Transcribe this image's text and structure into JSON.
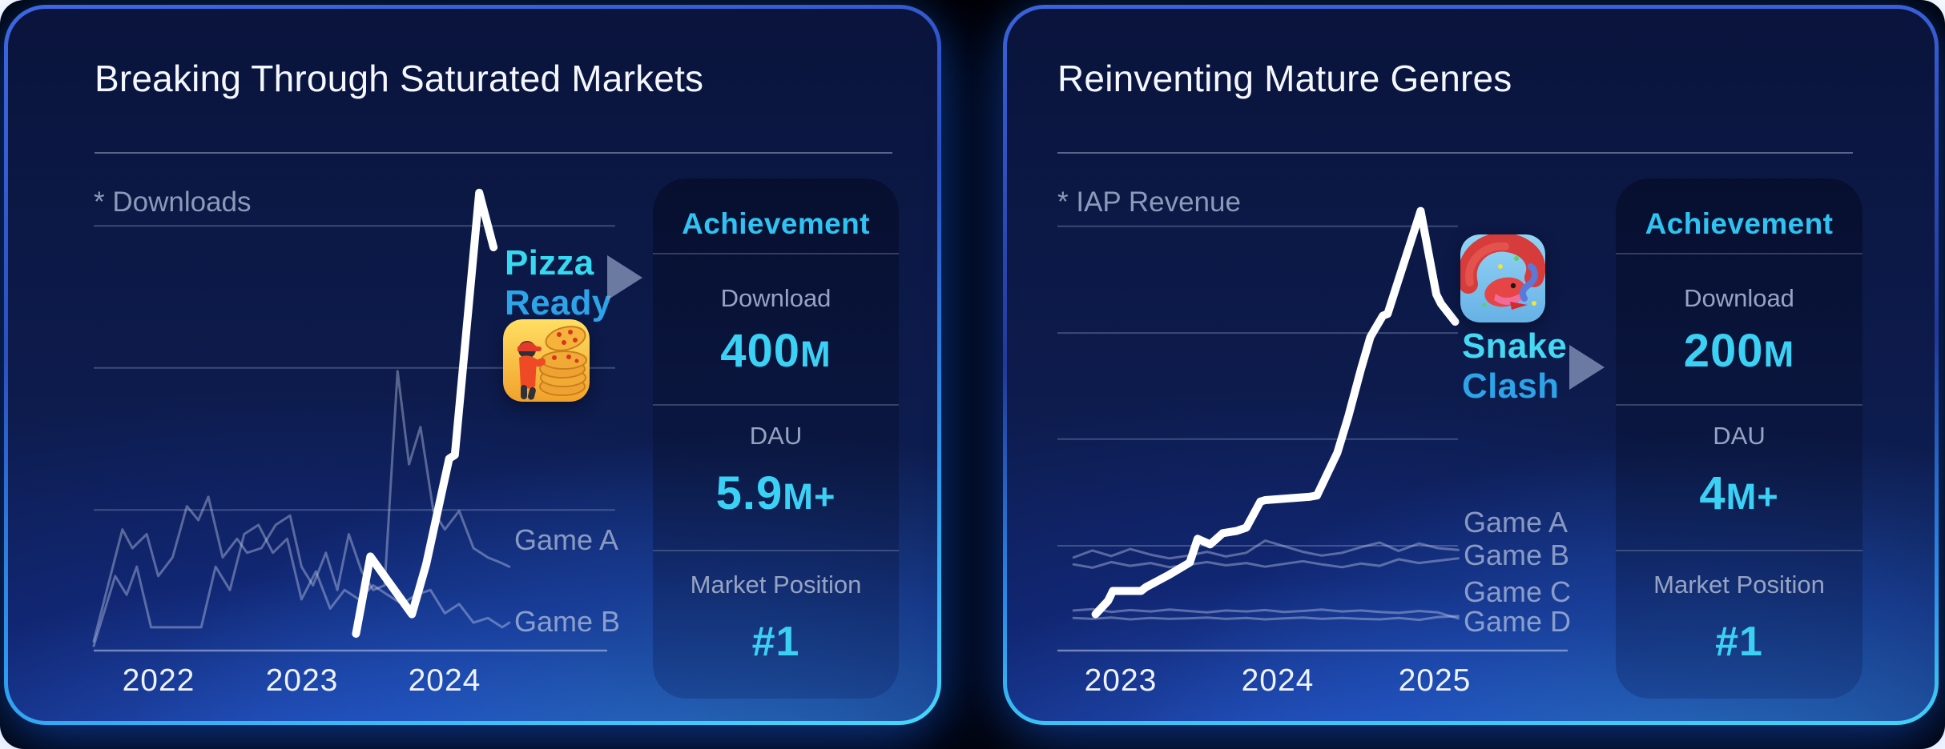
{
  "colors": {
    "accent_cyan": "#3bd1f5",
    "header_cyan": "#2fc3f2",
    "app_name_line1_cyan": "#36d9f0",
    "app_name_line2_blue": "#2da3e8",
    "muted_label_gray": "#97a3c2",
    "series_label_gray": "rgba(178,192,220,0.74)",
    "hero_line_white": "#ffffff",
    "competitor_line": "rgba(199,211,238,0.40)",
    "card_border_blue": "#2f9df0",
    "card_border_cyan": "#45d9fa"
  },
  "cards": [
    {
      "title": "Breaking Through Saturated Markets",
      "metric_note": "* Downloads",
      "x_ticks": [
        "2022",
        "2023",
        "2024"
      ],
      "line_labels": [
        "Game A",
        "Game B"
      ],
      "app": {
        "name_line1": "Pizza",
        "name_line2": "Ready",
        "icon": "pizza-ready-app-icon",
        "arrow_icon": "triangle-right-icon"
      },
      "achievement": {
        "header": "Achievement",
        "stats": [
          {
            "label": "Download",
            "value_main": "400",
            "value_suffix": "M"
          },
          {
            "label": "DAU",
            "value_main": "5.9",
            "value_suffix": "M+"
          },
          {
            "label": "Market Position",
            "value_main": "#1",
            "value_suffix": ""
          }
        ]
      }
    },
    {
      "title": "Reinventing Mature Genres",
      "metric_note": "* IAP Revenue",
      "x_ticks": [
        "2023",
        "2024",
        "2025"
      ],
      "line_labels": [
        "Game A",
        "Game B",
        "Game C",
        "Game D"
      ],
      "app": {
        "name_line1": "Snake",
        "name_line2": "Clash",
        "icon": "snake-clash-app-icon",
        "arrow_icon": "triangle-right-icon"
      },
      "achievement": {
        "header": "Achievement",
        "stats": [
          {
            "label": "Download",
            "value_main": "200",
            "value_suffix": "M"
          },
          {
            "label": "DAU",
            "value_main": "4",
            "value_suffix": "M+"
          },
          {
            "label": "Market Position",
            "value_main": "#1",
            "value_suffix": ""
          }
        ]
      }
    }
  ],
  "chart_data": [
    {
      "type": "line",
      "title": "Breaking Through Saturated Markets",
      "metric": "Downloads",
      "xlabel": "",
      "ylabel": "",
      "x_ticks": [
        2022,
        2023,
        2024
      ],
      "xlim": [
        2021.55,
        2025.3
      ],
      "ylim": [
        0,
        100
      ],
      "y_units": "relative downloads (no numeric scale shown)",
      "grid": "horizontal",
      "gridline_values": [
        30.2,
        60.7,
        91.2
      ],
      "legend_position": "inline-right",
      "series": [
        {
          "name": "Game A",
          "color": "rgba(199,211,238,0.40)",
          "width": 3,
          "x": [
            2021.55,
            2021.65,
            2021.75,
            2021.82,
            2021.92,
            2022.0,
            2022.1,
            2022.2,
            2022.28,
            2022.35,
            2022.45,
            2022.55,
            2022.62,
            2022.72,
            2022.82,
            2022.92,
            2023.0,
            2023.08,
            2023.17,
            2023.25,
            2023.33,
            2023.42,
            2023.5,
            2023.58,
            2023.67,
            2023.75,
            2023.83,
            2023.92,
            2024.0,
            2024.1,
            2024.2,
            2024.3,
            2024.38,
            2024.45
          ],
          "y": [
            2,
            14,
            26,
            22,
            25,
            16,
            20,
            31,
            28,
            33,
            20,
            24,
            21,
            22,
            27,
            29,
            18,
            14,
            21,
            13,
            25,
            17,
            13,
            14,
            60,
            40,
            48,
            30,
            26,
            30,
            22,
            20,
            19,
            18
          ]
        },
        {
          "name": "Game B",
          "color": "rgba(199,211,238,0.40)",
          "width": 3,
          "x": [
            2021.55,
            2021.62,
            2021.7,
            2021.78,
            2021.85,
            2021.95,
            2022.3,
            2022.4,
            2022.5,
            2022.6,
            2022.7,
            2022.8,
            2022.9,
            2023.0,
            2023.1,
            2023.2,
            2023.3,
            2023.4,
            2023.5,
            2023.6,
            2023.7,
            2023.8,
            2023.9,
            2024.0,
            2024.1,
            2024.2,
            2024.3,
            2024.4,
            2024.45
          ],
          "y": [
            1,
            8,
            16,
            12,
            18,
            5,
            5,
            18,
            13,
            25,
            27,
            21,
            24,
            11,
            17,
            9,
            13,
            11,
            14,
            12,
            10,
            12,
            13,
            8,
            10,
            6,
            7,
            5,
            6
          ]
        },
        {
          "name": "Pizza Ready",
          "color": "#ffffff",
          "width": 10,
          "x": [
            2023.38,
            2023.48,
            2023.77,
            2023.87,
            2023.97,
            2024.03,
            2024.07,
            2024.24,
            2024.34
          ],
          "y": [
            3.6,
            20.2,
            7.8,
            18.5,
            32.7,
            41.2,
            42.0,
            98.3,
            86.6
          ]
        }
      ]
    },
    {
      "type": "line",
      "title": "Reinventing Mature Genres",
      "metric": "IAP Revenue",
      "xlabel": "",
      "ylabel": "",
      "x_ticks": [
        2023,
        2024,
        2025
      ],
      "xlim": [
        2022.6,
        2025.9
      ],
      "ylim": [
        0,
        100
      ],
      "y_units": "relative IAP revenue (no numeric scale shown)",
      "grid": "horizontal",
      "gridline_values": [
        22.5,
        45.4,
        68.2,
        91.1
      ],
      "legend_position": "inline-right",
      "series": [
        {
          "name": "Game A",
          "color": "rgba(199,211,238,0.40)",
          "width": 3,
          "x": [
            2022.7,
            2022.82,
            2022.94,
            2023.06,
            2023.19,
            2023.31,
            2023.43,
            2023.55,
            2023.67,
            2023.8,
            2023.92,
            2024.04,
            2024.16,
            2024.28,
            2024.41,
            2024.53,
            2024.65,
            2024.77,
            2024.9,
            2025.02,
            2025.15
          ],
          "y": [
            20,
            21.5,
            20.3,
            21.8,
            20.6,
            19.8,
            20.4,
            21.2,
            20.2,
            21,
            23.6,
            22.4,
            21.2,
            20.4,
            21,
            22.2,
            23.2,
            21.4,
            23,
            22,
            21.6
          ]
        },
        {
          "name": "Game B",
          "color": "rgba(199,211,238,0.40)",
          "width": 3,
          "x": [
            2022.7,
            2022.82,
            2022.94,
            2023.06,
            2023.19,
            2023.31,
            2023.43,
            2023.55,
            2023.67,
            2023.8,
            2023.92,
            2024.04,
            2024.16,
            2024.28,
            2024.41,
            2024.53,
            2024.65,
            2024.77,
            2024.9,
            2025.02,
            2025.15
          ],
          "y": [
            18.5,
            17.8,
            19,
            18.2,
            18.8,
            17.9,
            18.4,
            19,
            18.3,
            18.8,
            18,
            18.6,
            19.2,
            18.5,
            17.9,
            18.7,
            18.2,
            19.6,
            18.8,
            19.3,
            19.8
          ]
        },
        {
          "name": "Game C",
          "color": "rgba(199,211,238,0.40)",
          "width": 3,
          "x": [
            2022.7,
            2022.82,
            2022.94,
            2023.06,
            2023.19,
            2023.31,
            2023.43,
            2023.55,
            2023.67,
            2023.8,
            2023.92,
            2024.04,
            2024.16,
            2024.28,
            2024.41,
            2024.53,
            2024.65,
            2024.77,
            2024.9,
            2025.02,
            2025.15
          ],
          "y": [
            8.6,
            8.9,
            8.3,
            8.7,
            8.4,
            8.8,
            8.5,
            8.2,
            8.6,
            8.4,
            8.7,
            8.3,
            8.5,
            8.8,
            8.4,
            8.6,
            8.3,
            8.1,
            8.5,
            8.2,
            6.9
          ]
        },
        {
          "name": "Game D",
          "color": "rgba(199,211,238,0.40)",
          "width": 3,
          "x": [
            2022.7,
            2022.82,
            2022.94,
            2023.06,
            2023.19,
            2023.31,
            2023.43,
            2023.55,
            2023.67,
            2023.8,
            2023.92,
            2024.04,
            2024.16,
            2024.28,
            2024.41,
            2024.53,
            2024.65,
            2024.77,
            2024.9,
            2025.02,
            2025.15
          ],
          "y": [
            7,
            6.8,
            7.1,
            6.7,
            7,
            6.8,
            6.9,
            7.1,
            6.8,
            7,
            6.7,
            6.9,
            7.1,
            6.8,
            7,
            6.8,
            6.7,
            7,
            6.6,
            7.2,
            7.4
          ]
        },
        {
          "name": "Snake Clash",
          "color": "#ffffff",
          "width": 10,
          "x": [
            2022.84,
            2022.92,
            2022.95,
            2023.13,
            2023.16,
            2023.31,
            2023.44,
            2023.49,
            2023.57,
            2023.65,
            2023.74,
            2023.8,
            2023.89,
            2023.92,
            2024.2,
            2024.25,
            2024.38,
            2024.45,
            2024.53,
            2024.59,
            2024.61,
            2024.67,
            2024.7,
            2024.91,
            2025.01,
            2025.04,
            2025.13
          ],
          "y": [
            7.8,
            10.7,
            12.8,
            12.8,
            13.6,
            16.3,
            18.9,
            24.0,
            22.8,
            25.2,
            25.7,
            26.4,
            32.0,
            32.3,
            33.0,
            33.3,
            42.5,
            50.3,
            60.4,
            67.3,
            68.5,
            71.9,
            72.3,
            94.4,
            76.5,
            74.5,
            70.6
          ]
        }
      ]
    }
  ]
}
